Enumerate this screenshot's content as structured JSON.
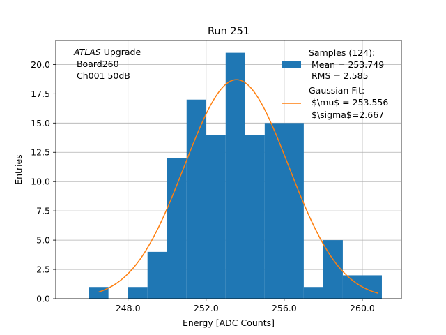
{
  "chart_data": {
    "type": "bar",
    "title": "Run 251",
    "xlabel": "Energy [ADC Counts]",
    "ylabel": "Entries",
    "xlim": [
      244.3,
      262.0
    ],
    "ylim": [
      0,
      22.05
    ],
    "grid": true,
    "x_ticks": [
      {
        "value": 248.0,
        "label": "248.0"
      },
      {
        "value": 252.0,
        "label": "252.0"
      },
      {
        "value": 256.0,
        "label": "256.0"
      },
      {
        "value": 260.0,
        "label": "260.0"
      }
    ],
    "y_ticks": [
      {
        "value": 0,
        "label": "0.0"
      },
      {
        "value": 2.5,
        "label": "2.5"
      },
      {
        "value": 5,
        "label": "5.0"
      },
      {
        "value": 7.5,
        "label": "7.5"
      },
      {
        "value": 10,
        "label": "10.0"
      },
      {
        "value": 12.5,
        "label": "12.5"
      },
      {
        "value": 15,
        "label": "15.0"
      },
      {
        "value": 17.5,
        "label": "17.5"
      },
      {
        "value": 20,
        "label": "20.0"
      }
    ],
    "bins": [
      {
        "start": 246.0,
        "end": 247.0,
        "count": 1
      },
      {
        "start": 247.0,
        "end": 248.0,
        "count": 0
      },
      {
        "start": 248.0,
        "end": 249.0,
        "count": 1
      },
      {
        "start": 249.0,
        "end": 250.0,
        "count": 4
      },
      {
        "start": 250.0,
        "end": 251.0,
        "count": 12
      },
      {
        "start": 251.0,
        "end": 252.0,
        "count": 17
      },
      {
        "start": 252.0,
        "end": 253.0,
        "count": 14
      },
      {
        "start": 253.0,
        "end": 254.0,
        "count": 21
      },
      {
        "start": 254.0,
        "end": 255.0,
        "count": 14
      },
      {
        "start": 255.0,
        "end": 256.0,
        "count": 15
      },
      {
        "start": 256.0,
        "end": 257.0,
        "count": 15
      },
      {
        "start": 257.0,
        "end": 258.0,
        "count": 1
      },
      {
        "start": 258.0,
        "end": 259.0,
        "count": 5
      },
      {
        "start": 259.0,
        "end": 260.0,
        "count": 2
      },
      {
        "start": 260.0,
        "end": 261.0,
        "count": 2
      }
    ],
    "fit": {
      "type": "gaussian",
      "mu": 253.556,
      "sigma": 2.667,
      "peak": 18.7,
      "x_range": [
        246.5,
        260.8
      ]
    },
    "legend": {
      "position": "top-right",
      "entries": [
        {
          "kind": "patch",
          "lines": [
            "Samples (124):",
            " Mean = 253.749",
            " RMS = 2.585"
          ]
        },
        {
          "kind": "line",
          "lines": [
            "Gaussian Fit:",
            " $\\mu$ = 253.556",
            " $\\sigma$=2.667"
          ]
        }
      ]
    },
    "annotation": {
      "position": "top-left",
      "lines": [
        {
          "italic": "ATLAS",
          "text": " Upgrade"
        },
        {
          "italic": "",
          "text": " Board260"
        },
        {
          "italic": "",
          "text": " Ch001 50dB"
        }
      ]
    },
    "colors": {
      "bars": "#1f77b4",
      "fit_line": "#ff7f0e",
      "grid": "#b0b0b0",
      "axes": "#000000"
    }
  }
}
